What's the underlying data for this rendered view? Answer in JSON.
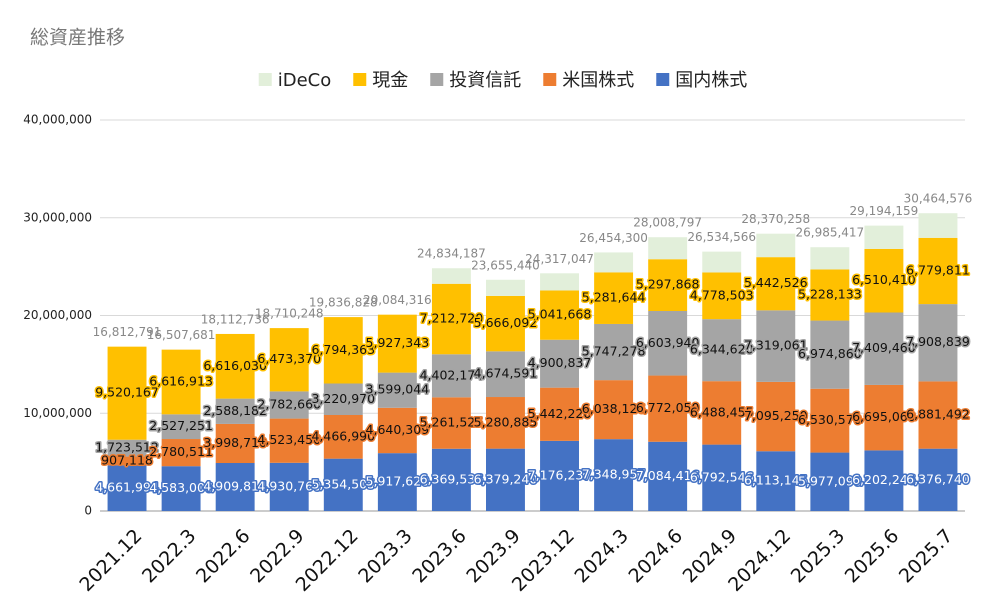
{
  "chart_data": {
    "type": "stacked_bar",
    "title": "総資産推移",
    "categories": [
      "2021.12",
      "2022.3",
      "2022.6",
      "2022.9",
      "2022.12",
      "2023.3",
      "2023.6",
      "2023.9",
      "2023.12",
      "2024.3",
      "2024.6",
      "2024.9",
      "2024.12",
      "2025.3",
      "2025.6",
      "2025.7"
    ],
    "series": [
      {
        "name": "国内株式",
        "color": "#4472c4",
        "values": [
          4661994,
          4583006,
          4909814,
          4930760,
          5354505,
          5917620,
          6369536,
          6379240,
          7176237,
          7348957,
          7084416,
          6792546,
          6113145,
          5977090,
          6202246,
          6376740
        ],
        "value_labels": [
          "4,661,994",
          "4,583,006",
          "4,909,814",
          "4,930,760",
          "5,354,505",
          "5,917,620",
          "6,369,536",
          "6,379,240",
          "7,176,237",
          "7,348,957",
          "7,084,416",
          "6,792,546",
          "6,113,145",
          "5,977,090",
          "6,202,246",
          "6,376,740"
        ]
      },
      {
        "name": "米国株式",
        "color": "#ed7d31",
        "values": [
          907118,
          2780511,
          3998710,
          4523450,
          4466990,
          4640309,
          5261525,
          5280885,
          5442220,
          6038126,
          6772050,
          6488455,
          7095250,
          6530570,
          6695060,
          6881492
        ],
        "value_labels": [
          "907,118",
          "2,780,511",
          "3,998,710",
          "4,523,450",
          "4,466,990",
          "4,640,309",
          "5,261,525",
          "5,280,885",
          "5,442,220",
          "6,038,126",
          "6,772,050",
          "6,488,455",
          "7,095,250",
          "6,530,570",
          "6,695,060",
          "6,881,492"
        ]
      },
      {
        "name": "投資信託",
        "color": "#a5a5a5",
        "values": [
          1723512,
          2527251,
          2588182,
          2782660,
          3220970,
          3599044,
          4402174,
          4674591,
          4900837,
          5747278,
          6603940,
          6344620,
          7319061,
          6974860,
          7409460,
          7908839
        ],
        "value_labels": [
          "1,723,512",
          "2,527,251",
          "2,588,182",
          "2,782,660",
          "3,220,970",
          "3,599,044",
          "4,402,174",
          "4,674,591",
          "4,900,837",
          "5,747,278",
          "6,603,940",
          "6,344,620",
          "7,319,061",
          "6,974,860",
          "7,409,460",
          "7,908,839"
        ]
      },
      {
        "name": "現金",
        "color": "#ffc000",
        "values": [
          9520167,
          6616913,
          6616030,
          6473370,
          6794363,
          5927343,
          7212720,
          5666092,
          5041668,
          5281644,
          5297868,
          4778503,
          5442526,
          5228133,
          6510410,
          6779811
        ],
        "value_labels": [
          "9,520,167",
          "6,616,913",
          "6,616,030",
          "6,473,370",
          "6,794,363",
          "5,927,343",
          "7,212,720",
          "5,666,092",
          "5,041,668",
          "5,281,644",
          "5,297,868",
          "4,778,503",
          "5,442,526",
          "5,228,133",
          "6,510,410",
          "6,779,811"
        ]
      },
      {
        "name": "iDeCo",
        "color": "#e2efda",
        "values": [
          0,
          0,
          0,
          8,
          0,
          0,
          1588232,
          1654632,
          1756085,
          2038295,
          2250523,
          2130442,
          2400276,
          2274764,
          2376983,
          2517694
        ]
      }
    ],
    "totals": [
      16812791,
      16507681,
      18112736,
      18710248,
      19836828,
      20084316,
      24834187,
      23655440,
      24317047,
      26454300,
      28008797,
      26534566,
      28370258,
      26985417,
      29194159,
      30464576
    ],
    "totals_labels": [
      "16,812,791",
      "16,507,681",
      "18,112,736",
      "18,710,248",
      "19,836,828",
      "20,084,316",
      "24,834,187",
      "23,655,440",
      "24,317,047",
      "26,454,300",
      "28,008,797",
      "26,534,566",
      "28,370,258",
      "26,985,417",
      "29,194,159",
      "30,464,576"
    ],
    "ylim": [
      0,
      40000000
    ],
    "yticks": [
      0,
      {
        "value": 10000000,
        "label": "10,000,000"
      },
      {
        "value": 20000000,
        "label": "20,000,000"
      },
      {
        "value": 30000000,
        "label": "30,000,000"
      },
      {
        "value": 40000000,
        "label": "40,000,000"
      }
    ],
    "grid": true,
    "legend": "top"
  }
}
